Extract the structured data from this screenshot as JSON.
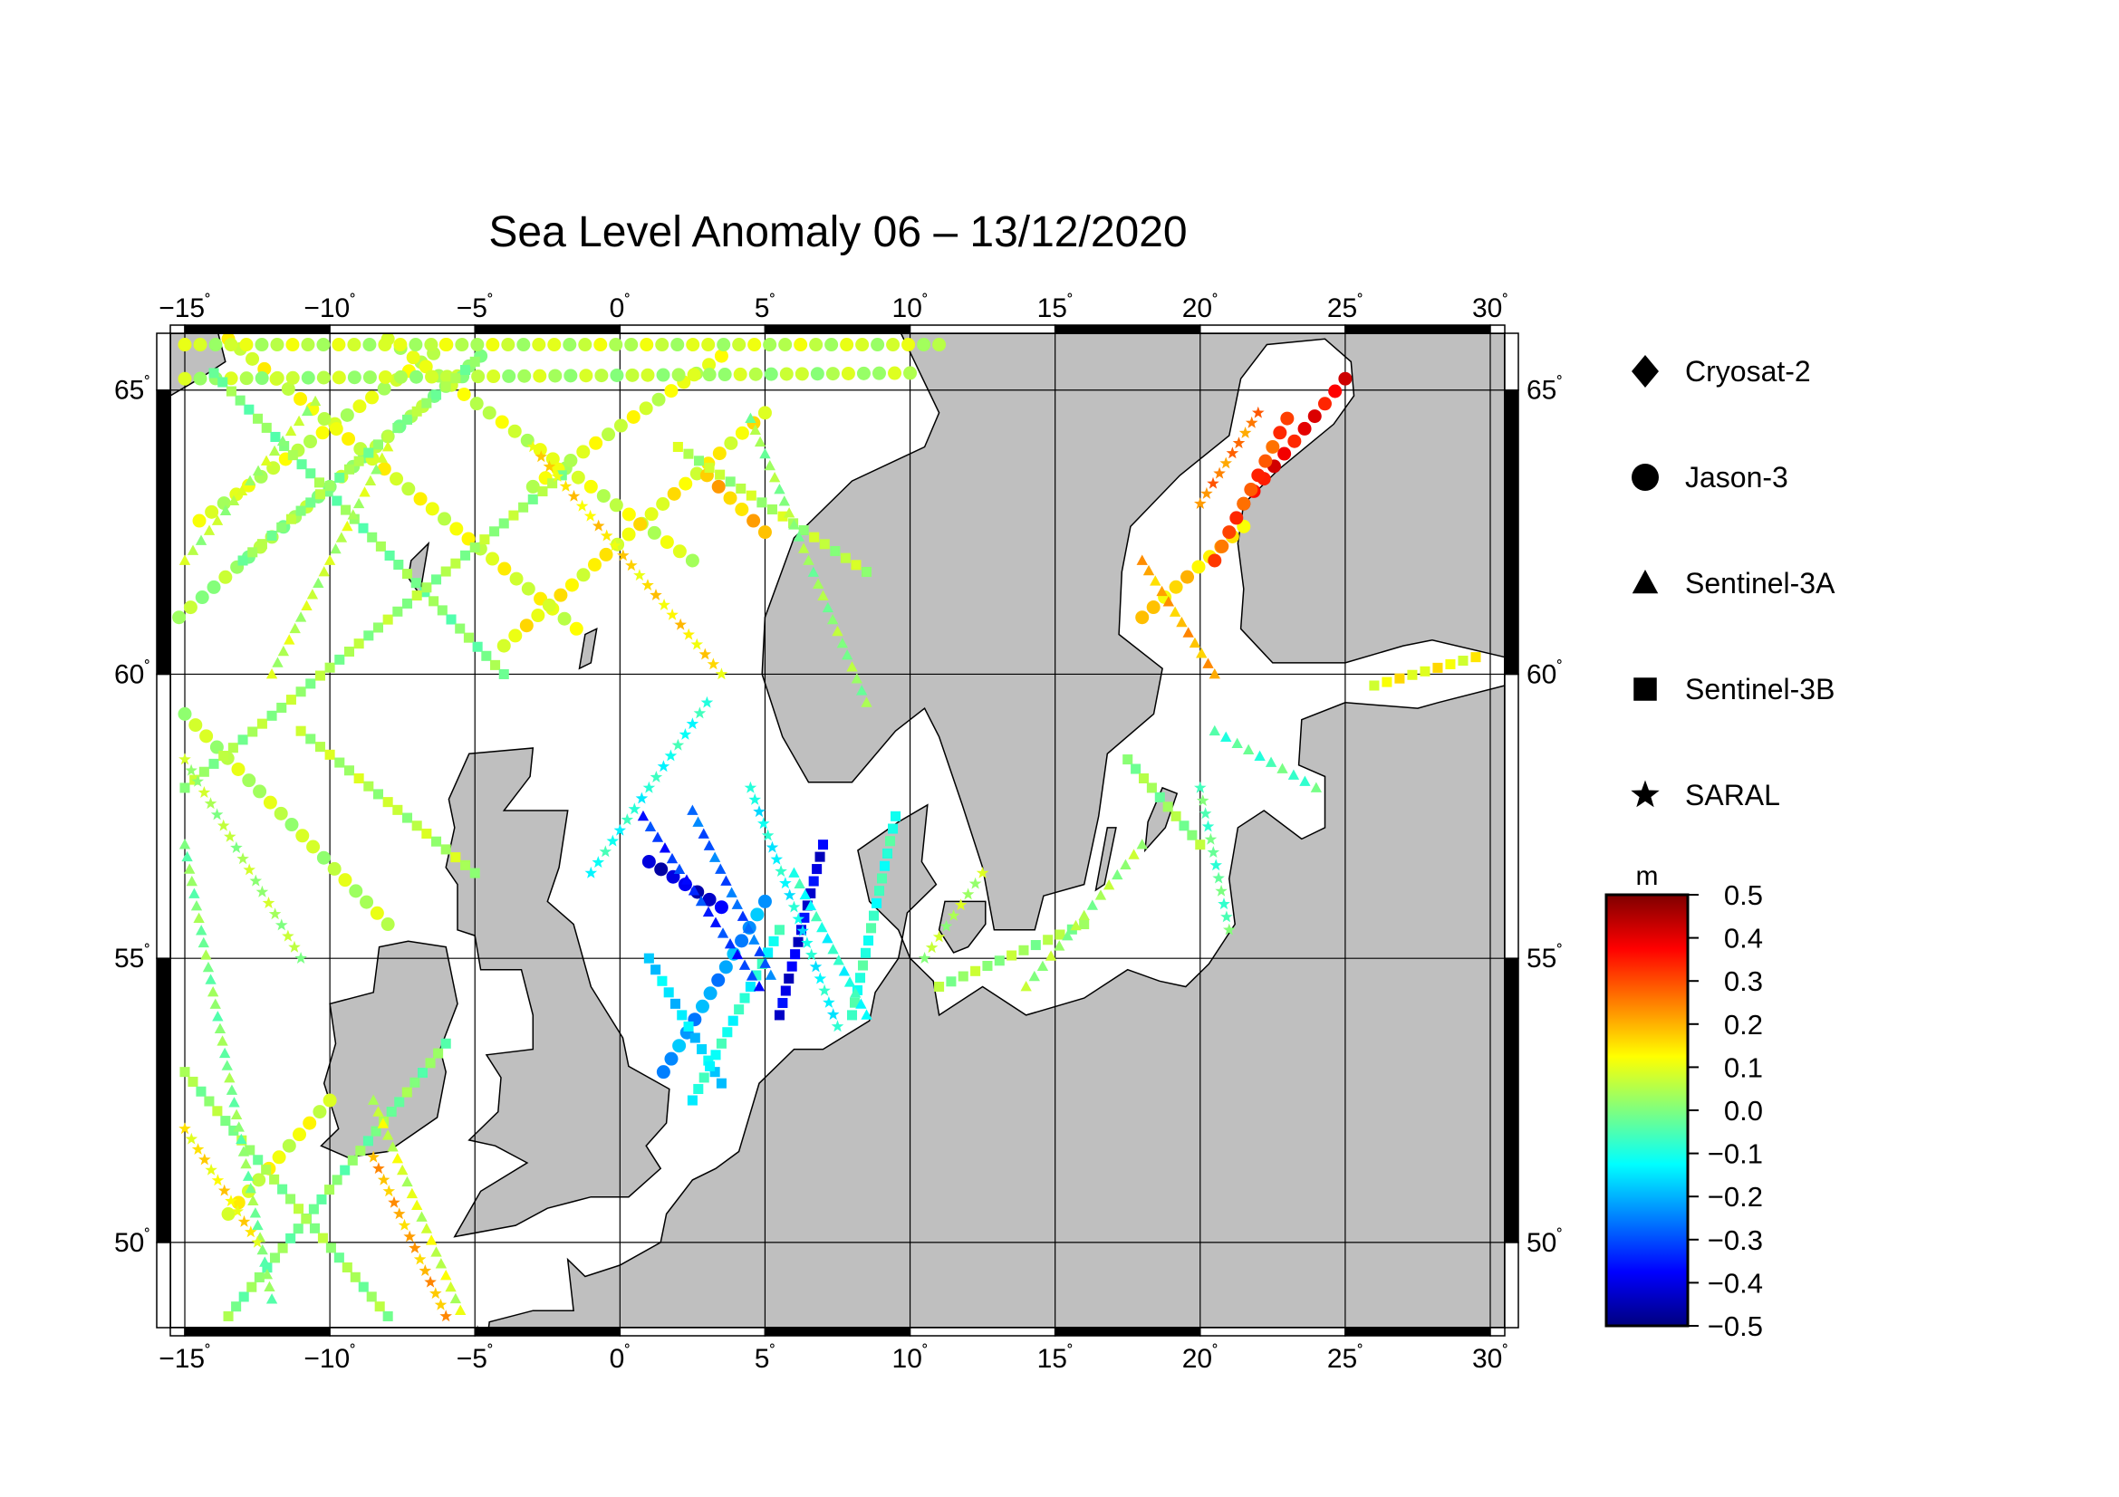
{
  "title": "Sea Level Anomaly 06 – 13/12/2020",
  "map": {
    "lon_range": [
      -15.5,
      30.5
    ],
    "lat_range": [
      48.5,
      66.0
    ],
    "lon_ticks": [
      {
        "value": -15,
        "label": "−15"
      },
      {
        "value": -10,
        "label": "−10"
      },
      {
        "value": -5,
        "label": "−5"
      },
      {
        "value": 0,
        "label": "0"
      },
      {
        "value": 5,
        "label": "5"
      },
      {
        "value": 10,
        "label": "10"
      },
      {
        "value": 15,
        "label": "15"
      },
      {
        "value": 20,
        "label": "20"
      },
      {
        "value": 25,
        "label": "25"
      },
      {
        "value": 30,
        "label": "30"
      }
    ],
    "lat_ticks": [
      {
        "value": 50,
        "label": "50"
      },
      {
        "value": 55,
        "label": "55"
      },
      {
        "value": 60,
        "label": "60"
      },
      {
        "value": 65,
        "label": "65"
      }
    ],
    "degree_symbol": "˚",
    "land_color": "#bfbfbf",
    "sea_color": "#ffffff",
    "grid": true
  },
  "legend": {
    "placement": "right",
    "items": [
      {
        "label": "Cryosat-2",
        "symbol": "diamond"
      },
      {
        "label": "Jason-3",
        "symbol": "circle"
      },
      {
        "label": "Sentinel-3A",
        "symbol": "triangle"
      },
      {
        "label": "Sentinel-3B",
        "symbol": "square"
      },
      {
        "label": "SARAL",
        "symbol": "star"
      }
    ]
  },
  "colorbar": {
    "unit": "m",
    "min": -0.5,
    "max": 0.5,
    "ticks": [
      {
        "value": 0.5,
        "label": "0.5"
      },
      {
        "value": 0.4,
        "label": "0.4"
      },
      {
        "value": 0.3,
        "label": "0.3"
      },
      {
        "value": 0.2,
        "label": "0.2"
      },
      {
        "value": 0.1,
        "label": "0.1"
      },
      {
        "value": 0.0,
        "label": "0.0"
      },
      {
        "value": -0.1,
        "label": "−0.1"
      },
      {
        "value": -0.2,
        "label": "−0.2"
      },
      {
        "value": -0.3,
        "label": "−0.3"
      },
      {
        "value": -0.4,
        "label": "−0.4"
      },
      {
        "value": -0.5,
        "label": "−0.5"
      }
    ],
    "stops": [
      "#00007f",
      "#0000ff",
      "#007fff",
      "#00ffff",
      "#7fff7f",
      "#ffff00",
      "#ff7f00",
      "#ff0000",
      "#7f0000"
    ]
  },
  "tracks": [
    {
      "symbol": "circle",
      "from": [
        -15.2,
        61.0
      ],
      "to": [
        -4.8,
        65.6
      ],
      "value": 0.03
    },
    {
      "symbol": "circle",
      "from": [
        -14.5,
        62.7
      ],
      "to": [
        -6.0,
        65.8
      ],
      "value": 0.08
    },
    {
      "symbol": "circle",
      "from": [
        -13.5,
        65.9
      ],
      "to": [
        -1.5,
        60.8
      ],
      "value": 0.1
    },
    {
      "symbol": "circle",
      "from": [
        -8.0,
        65.9
      ],
      "to": [
        2.5,
        62.0
      ],
      "value": 0.08
    },
    {
      "symbol": "circle",
      "from": [
        -4.0,
        60.5
      ],
      "to": [
        5.0,
        64.6
      ],
      "value": 0.12
    },
    {
      "symbol": "circle",
      "from": [
        -3.0,
        63.3
      ],
      "to": [
        3.5,
        65.6
      ],
      "value": 0.09
    },
    {
      "symbol": "circle",
      "from": [
        3.0,
        63.5
      ],
      "to": [
        5.0,
        62.5
      ],
      "value": 0.18
    },
    {
      "symbol": "circle",
      "from": [
        -15.0,
        65.8
      ],
      "to": [
        11.0,
        65.8
      ],
      "value": 0.07
    },
    {
      "symbol": "circle",
      "from": [
        -15.0,
        65.2
      ],
      "to": [
        10.0,
        65.3
      ],
      "value": 0.05
    },
    {
      "symbol": "circle",
      "from": [
        1.0,
        56.7
      ],
      "to": [
        3.5,
        55.9
      ],
      "value": -0.42
    },
    {
      "symbol": "circle",
      "from": [
        1.5,
        53.0
      ],
      "to": [
        5.0,
        56.0
      ],
      "value": -0.22
    },
    {
      "symbol": "circle",
      "from": [
        -15.0,
        59.3
      ],
      "to": [
        -8.0,
        55.6
      ],
      "value": 0.06
    },
    {
      "symbol": "circle",
      "from": [
        -13.5,
        50.5
      ],
      "to": [
        -10.0,
        52.5
      ],
      "value": 0.1
    },
    {
      "symbol": "circle",
      "from": [
        18.0,
        61.0
      ],
      "to": [
        21.5,
        62.6
      ],
      "value": 0.16
    },
    {
      "symbol": "circle",
      "from": [
        21.5,
        63.0
      ],
      "to": [
        25.0,
        65.2
      ],
      "value": 0.38
    },
    {
      "symbol": "circle",
      "from": [
        20.5,
        62.0
      ],
      "to": [
        23.0,
        64.5
      ],
      "value": 0.3
    },
    {
      "symbol": "square",
      "from": [
        -14.0,
        65.3
      ],
      "to": [
        -4.0,
        60.0
      ],
      "value": 0.0
    },
    {
      "symbol": "square",
      "from": [
        -13.0,
        62.0
      ],
      "to": [
        -5.0,
        65.5
      ],
      "value": 0.02
    },
    {
      "symbol": "square",
      "from": [
        -15.0,
        58.0
      ],
      "to": [
        -2.0,
        63.5
      ],
      "value": 0.03
    },
    {
      "symbol": "square",
      "from": [
        -15.0,
        53.0
      ],
      "to": [
        -8.0,
        48.7
      ],
      "value": 0.02
    },
    {
      "symbol": "square",
      "from": [
        -13.5,
        48.7
      ],
      "to": [
        -6.0,
        53.5
      ],
      "value": 0.0
    },
    {
      "symbol": "square",
      "from": [
        -11.0,
        59.0
      ],
      "to": [
        -5.0,
        56.5
      ],
      "value": 0.05
    },
    {
      "symbol": "square",
      "from": [
        1.0,
        55.0
      ],
      "to": [
        3.5,
        52.8
      ],
      "value": -0.16
    },
    {
      "symbol": "square",
      "from": [
        2.5,
        52.5
      ],
      "to": [
        5.5,
        55.5
      ],
      "value": -0.1
    },
    {
      "symbol": "square",
      "from": [
        5.5,
        54.0
      ],
      "to": [
        7.0,
        57.0
      ],
      "value": -0.4
    },
    {
      "symbol": "square",
      "from": [
        8.0,
        54.0
      ],
      "to": [
        9.5,
        57.5
      ],
      "value": -0.08
    },
    {
      "symbol": "square",
      "from": [
        2.0,
        64.0
      ],
      "to": [
        8.5,
        61.8
      ],
      "value": 0.05
    },
    {
      "symbol": "square",
      "from": [
        11.0,
        54.5
      ],
      "to": [
        16.0,
        55.6
      ],
      "value": 0.03
    },
    {
      "symbol": "square",
      "from": [
        17.5,
        58.5
      ],
      "to": [
        20.0,
        57.0
      ],
      "value": 0.02
    },
    {
      "symbol": "square",
      "from": [
        26.0,
        59.8
      ],
      "to": [
        29.5,
        60.3
      ],
      "value": 0.12
    },
    {
      "symbol": "triangle",
      "from": [
        0.8,
        57.5
      ],
      "to": [
        4.8,
        54.5
      ],
      "value": -0.33
    },
    {
      "symbol": "triangle",
      "from": [
        2.5,
        57.6
      ],
      "to": [
        5.2,
        54.7
      ],
      "value": -0.28
    },
    {
      "symbol": "triangle",
      "from": [
        -15.0,
        62.0
      ],
      "to": [
        -10.5,
        64.8
      ],
      "value": 0.05
    },
    {
      "symbol": "triangle",
      "from": [
        -12.0,
        60.0
      ],
      "to": [
        -8.0,
        64.0
      ],
      "value": 0.06
    },
    {
      "symbol": "triangle",
      "from": [
        -15.0,
        57.0
      ],
      "to": [
        -12.0,
        49.0
      ],
      "value": 0.0
    },
    {
      "symbol": "triangle",
      "from": [
        -8.5,
        52.5
      ],
      "to": [
        -5.5,
        48.8
      ],
      "value": 0.08
    },
    {
      "symbol": "triangle",
      "from": [
        4.5,
        64.5
      ],
      "to": [
        8.5,
        59.5
      ],
      "value": 0.02
    },
    {
      "symbol": "triangle",
      "from": [
        6.0,
        56.5
      ],
      "to": [
        8.5,
        54.0
      ],
      "value": -0.1
    },
    {
      "symbol": "triangle",
      "from": [
        18.0,
        62.0
      ],
      "to": [
        20.5,
        60.0
      ],
      "value": 0.2
    },
    {
      "symbol": "triangle",
      "from": [
        14.0,
        54.5
      ],
      "to": [
        18.0,
        57.0
      ],
      "value": 0.03
    },
    {
      "symbol": "triangle",
      "from": [
        20.5,
        59.0
      ],
      "to": [
        24.0,
        58.0
      ],
      "value": -0.05
    },
    {
      "symbol": "star",
      "from": [
        -1.0,
        56.5
      ],
      "to": [
        3.0,
        59.5
      ],
      "value": -0.1
    },
    {
      "symbol": "star",
      "from": [
        -3.0,
        64.0
      ],
      "to": [
        3.5,
        60.0
      ],
      "value": 0.15
    },
    {
      "symbol": "star",
      "from": [
        -8.5,
        51.5
      ],
      "to": [
        -6.0,
        48.7
      ],
      "value": 0.2
    },
    {
      "symbol": "star",
      "from": [
        4.5,
        58.0
      ],
      "to": [
        7.5,
        53.8
      ],
      "value": -0.12
    },
    {
      "symbol": "star",
      "from": [
        -15.0,
        58.5
      ],
      "to": [
        -11.0,
        55.0
      ],
      "value": 0.04
    },
    {
      "symbol": "star",
      "from": [
        -15.0,
        52.0
      ],
      "to": [
        -12.5,
        50.0
      ],
      "value": 0.14
    },
    {
      "symbol": "star",
      "from": [
        20.0,
        63.0
      ],
      "to": [
        22.0,
        64.6
      ],
      "value": 0.25
    },
    {
      "symbol": "star",
      "from": [
        10.5,
        55.0
      ],
      "to": [
        12.5,
        56.5
      ],
      "value": 0.05
    },
    {
      "symbol": "star",
      "from": [
        20.0,
        58.0
      ],
      "to": [
        21.0,
        55.5
      ],
      "value": -0.04
    }
  ]
}
